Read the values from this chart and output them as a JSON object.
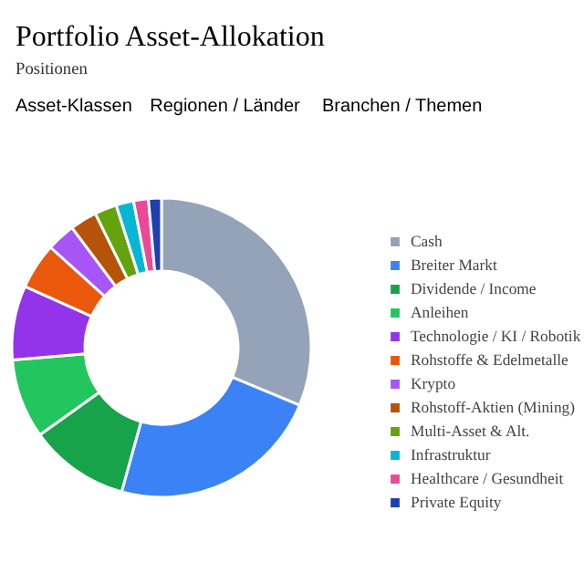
{
  "chart_data": {
    "type": "donut",
    "title": "Portfolio Asset-Allokation",
    "subtitle": "Positionen",
    "annotations": [
      "Asset-Klassen",
      "Regionen / Länder",
      "Branchen / Themen"
    ],
    "categories": [
      "Cash",
      "Breiter Markt",
      "Dividende / Income",
      "Anleihen",
      "Technologie / KI / Robotik",
      "Rohstoffe & Edelmetalle",
      "Krypto",
      "Rohstoff-Aktien (Mining)",
      "Multi-Asset & Alt.",
      "Infrastruktur",
      "Healthcare / Gesundheit",
      "Private Equity"
    ],
    "values": [
      31.3,
      23.0,
      10.8,
      8.6,
      8.0,
      5.0,
      3.1,
      2.9,
      2.4,
      1.9,
      1.6,
      1.4
    ],
    "colors": [
      "#94a3b8",
      "#3b82f6",
      "#16a34a",
      "#22c55e",
      "#9333ea",
      "#ea580c",
      "#a855f7",
      "#b45309",
      "#65a30d",
      "#06b6d4",
      "#ec4899",
      "#1e40af"
    ],
    "legend": "right"
  }
}
